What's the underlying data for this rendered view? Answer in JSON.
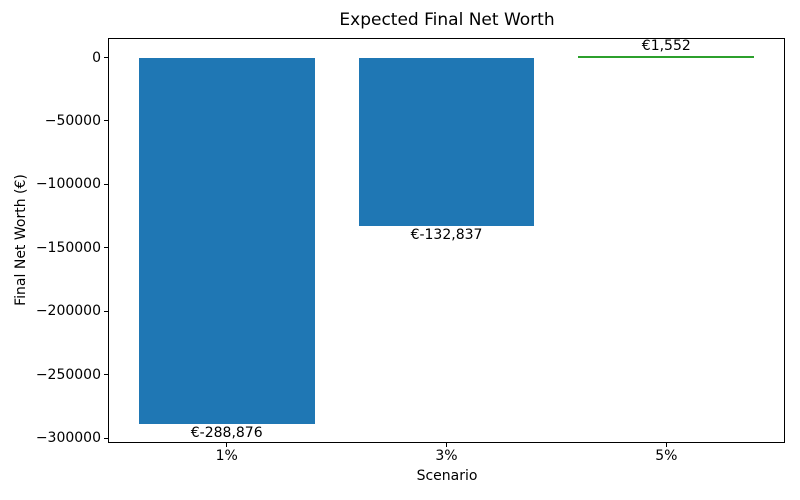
{
  "chart_data": {
    "type": "bar",
    "title": "Expected Final Net Worth",
    "xlabel": "Scenario",
    "ylabel": "Final Net Worth (€)",
    "categories": [
      "1%",
      "3%",
      "5%"
    ],
    "x": [
      0,
      1,
      2
    ],
    "values": [
      -288876,
      -132837,
      1552
    ],
    "bar_labels": [
      "€-288,876",
      "€-132,837",
      "€1,552"
    ],
    "bar_colors": [
      "#1f77b4",
      "#1f77b4",
      "#2ca02c"
    ],
    "bar_width": 0.8,
    "xlim": [
      -0.54,
      2.54
    ],
    "ylim": [
      -303800,
      15400
    ],
    "yticks": [
      0,
      -50000,
      -100000,
      -150000,
      -200000,
      -250000,
      -300000
    ],
    "ytick_labels": [
      "0",
      "−50000",
      "−100000",
      "−150000",
      "−200000",
      "−250000",
      "−300000"
    ],
    "grid": false,
    "legend": null,
    "axis_color": "#000000",
    "background_color": "#ffffff"
  }
}
